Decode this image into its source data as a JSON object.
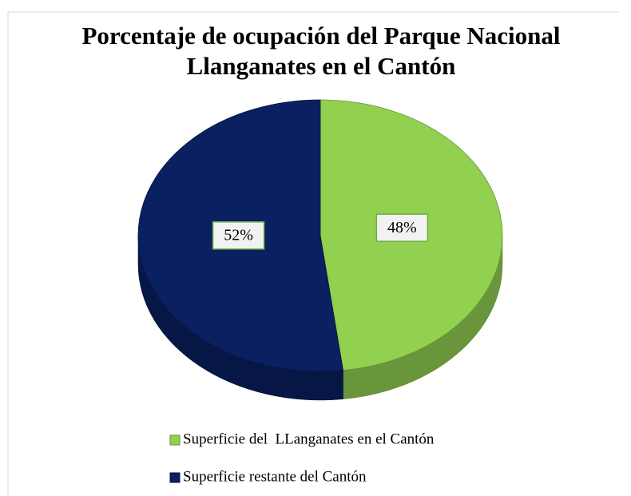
{
  "chart_data": {
    "type": "pie",
    "title": "Porcentaje de ocupación del Parque Nacional Llanganates en el Cantón",
    "categories": [
      "Superficie del  LLanganates en el Cantón",
      "Superficie restante del Cantón"
    ],
    "values": [
      48,
      52
    ],
    "value_labels": [
      "48%",
      "52%"
    ],
    "colors": [
      "#92d050",
      "#0a2060"
    ],
    "legend": "bottom"
  }
}
